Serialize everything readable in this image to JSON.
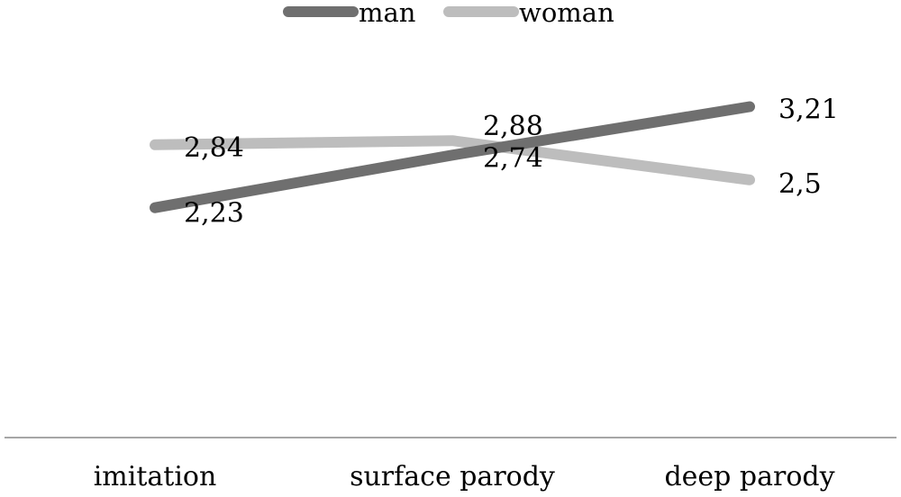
{
  "chart_data": {
    "type": "line",
    "categories": [
      "imitation",
      "surface parody",
      "deep parody"
    ],
    "series": [
      {
        "name": "man",
        "values": [
          2.23,
          2.74,
          3.21
        ],
        "labels": [
          "2,23",
          "2,74",
          "3,21"
        ],
        "color": "#6f6f6f"
      },
      {
        "name": "woman",
        "values": [
          2.84,
          2.88,
          2.5
        ],
        "labels": [
          "2,84",
          "2,88",
          "2,5"
        ],
        "color": "#bdbdbd"
      }
    ],
    "title": "",
    "xlabel": "",
    "ylabel": "",
    "ylim": [
      0,
      4
    ],
    "grid": false,
    "legend_position": "top-center",
    "axis_color": "#a6a6a6"
  }
}
